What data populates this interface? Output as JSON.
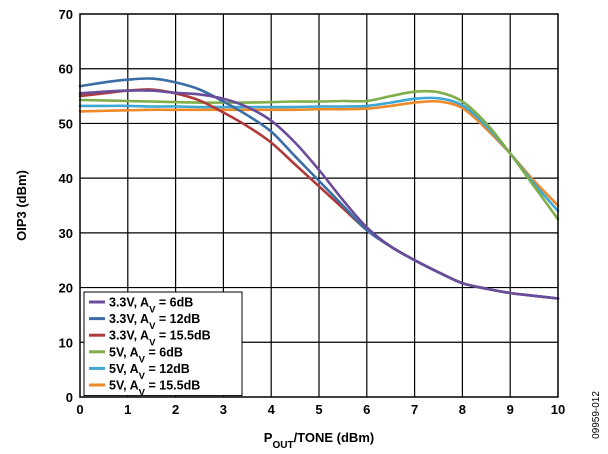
{
  "chart_data": {
    "type": "line",
    "xlabel": "P",
    "xlabel_sub": "OUT",
    "xlabel_rest": "/TONE (dBm)",
    "ylabel": "OIP3 (dBm)",
    "xlim": [
      0,
      10
    ],
    "ylim": [
      0,
      70
    ],
    "x_ticks": [
      "0",
      "1",
      "2",
      "3",
      "4",
      "5",
      "6",
      "7",
      "8",
      "9",
      "10"
    ],
    "y_ticks": [
      "0",
      "10",
      "20",
      "30",
      "40",
      "50",
      "60",
      "70"
    ],
    "grid": true,
    "legend_position": "bottom-left",
    "series": [
      {
        "name": "3.3V, A",
        "name_sub": "V",
        "name_rest": " = 6dB",
        "color": "#6b4c9a",
        "x": [
          0,
          0.5,
          1,
          1.5,
          2,
          2.5,
          3,
          3.5,
          4,
          4.5,
          5,
          5.5,
          6,
          6.5,
          7,
          7.5,
          8,
          8.5,
          9,
          9.5,
          10
        ],
        "y": [
          55.5,
          55.8,
          56.0,
          56.0,
          55.6,
          55.3,
          54.5,
          53.0,
          50.5,
          46.5,
          41.5,
          36.0,
          31.0,
          27.5,
          25.0,
          22.8,
          20.8,
          19.8,
          19.0,
          18.5,
          18.0
        ]
      },
      {
        "name": "3.3V, A",
        "name_sub": "V",
        "name_rest": " = 12dB",
        "color": "#3a6ea5",
        "x": [
          0,
          0.5,
          1,
          1.5,
          2,
          2.5,
          3,
          3.5,
          4,
          4.5,
          5,
          5.5,
          6,
          6.5,
          7,
          7.5,
          8,
          8.5,
          9,
          9.5,
          10
        ],
        "y": [
          56.8,
          57.5,
          58.0,
          58.2,
          57.5,
          56.2,
          54.0,
          51.5,
          48.5,
          44.0,
          39.5,
          35.0,
          30.5,
          27.5,
          25.0,
          22.8,
          20.8,
          19.8,
          19.0,
          18.5,
          18.0
        ]
      },
      {
        "name": "3.3V, A",
        "name_sub": "V",
        "name_rest": " = 15.5dB",
        "color": "#b03a3a",
        "x": [
          0,
          0.5,
          1,
          1.5,
          2,
          2.5,
          3,
          3.5,
          4,
          4.5,
          5,
          5.5,
          6,
          6.5,
          7,
          7.5,
          8,
          8.5,
          9,
          9.5,
          10
        ],
        "y": [
          55.0,
          55.5,
          56.0,
          56.2,
          55.5,
          54.2,
          52.0,
          49.5,
          46.5,
          42.5,
          38.5,
          34.5,
          30.5,
          27.5,
          25.0,
          22.8,
          20.8,
          19.8,
          19.0,
          18.5,
          18.0
        ]
      },
      {
        "name": "5V, A",
        "name_sub": "V",
        "name_rest": " = 6dB",
        "color": "#7fae4a",
        "x": [
          0,
          0.5,
          1,
          1.5,
          2,
          2.5,
          3,
          3.5,
          4,
          4.5,
          5,
          5.5,
          6,
          6.5,
          7,
          7.5,
          8,
          8.5,
          9,
          9.5,
          10
        ],
        "y": [
          54.3,
          54.2,
          54.1,
          54.0,
          53.9,
          53.8,
          53.8,
          53.8,
          53.9,
          54.0,
          54.0,
          54.1,
          54.1,
          55.0,
          55.8,
          55.7,
          54.0,
          50.0,
          44.5,
          38.5,
          32.5
        ]
      },
      {
        "name": "5V, A",
        "name_sub": "V",
        "name_rest": " = 12dB",
        "color": "#3ea7d4",
        "x": [
          0,
          0.5,
          1,
          1.5,
          2,
          2.5,
          3,
          3.5,
          4,
          4.5,
          5,
          5.5,
          6,
          6.5,
          7,
          7.5,
          8,
          8.5,
          9,
          9.5,
          10
        ],
        "y": [
          53.2,
          53.2,
          53.2,
          53.1,
          53.1,
          53.0,
          53.0,
          53.0,
          53.0,
          53.0,
          53.1,
          53.1,
          53.2,
          53.8,
          54.5,
          54.6,
          53.3,
          49.5,
          44.5,
          39.0,
          34.0
        ]
      },
      {
        "name": "5V, A",
        "name_sub": "V",
        "name_rest": " = 15.5dB",
        "color": "#ee8a2a",
        "x": [
          0,
          0.5,
          1,
          1.5,
          2,
          2.5,
          3,
          3.5,
          4,
          4.5,
          5,
          5.5,
          6,
          6.5,
          7,
          7.5,
          8,
          8.5,
          9,
          9.5,
          10
        ],
        "y": [
          52.2,
          52.3,
          52.4,
          52.5,
          52.5,
          52.5,
          52.5,
          52.5,
          52.5,
          52.5,
          52.6,
          52.6,
          52.7,
          53.2,
          53.8,
          54.0,
          52.8,
          49.0,
          44.5,
          39.5,
          35.0
        ]
      }
    ]
  },
  "figure_id": "09959-012"
}
